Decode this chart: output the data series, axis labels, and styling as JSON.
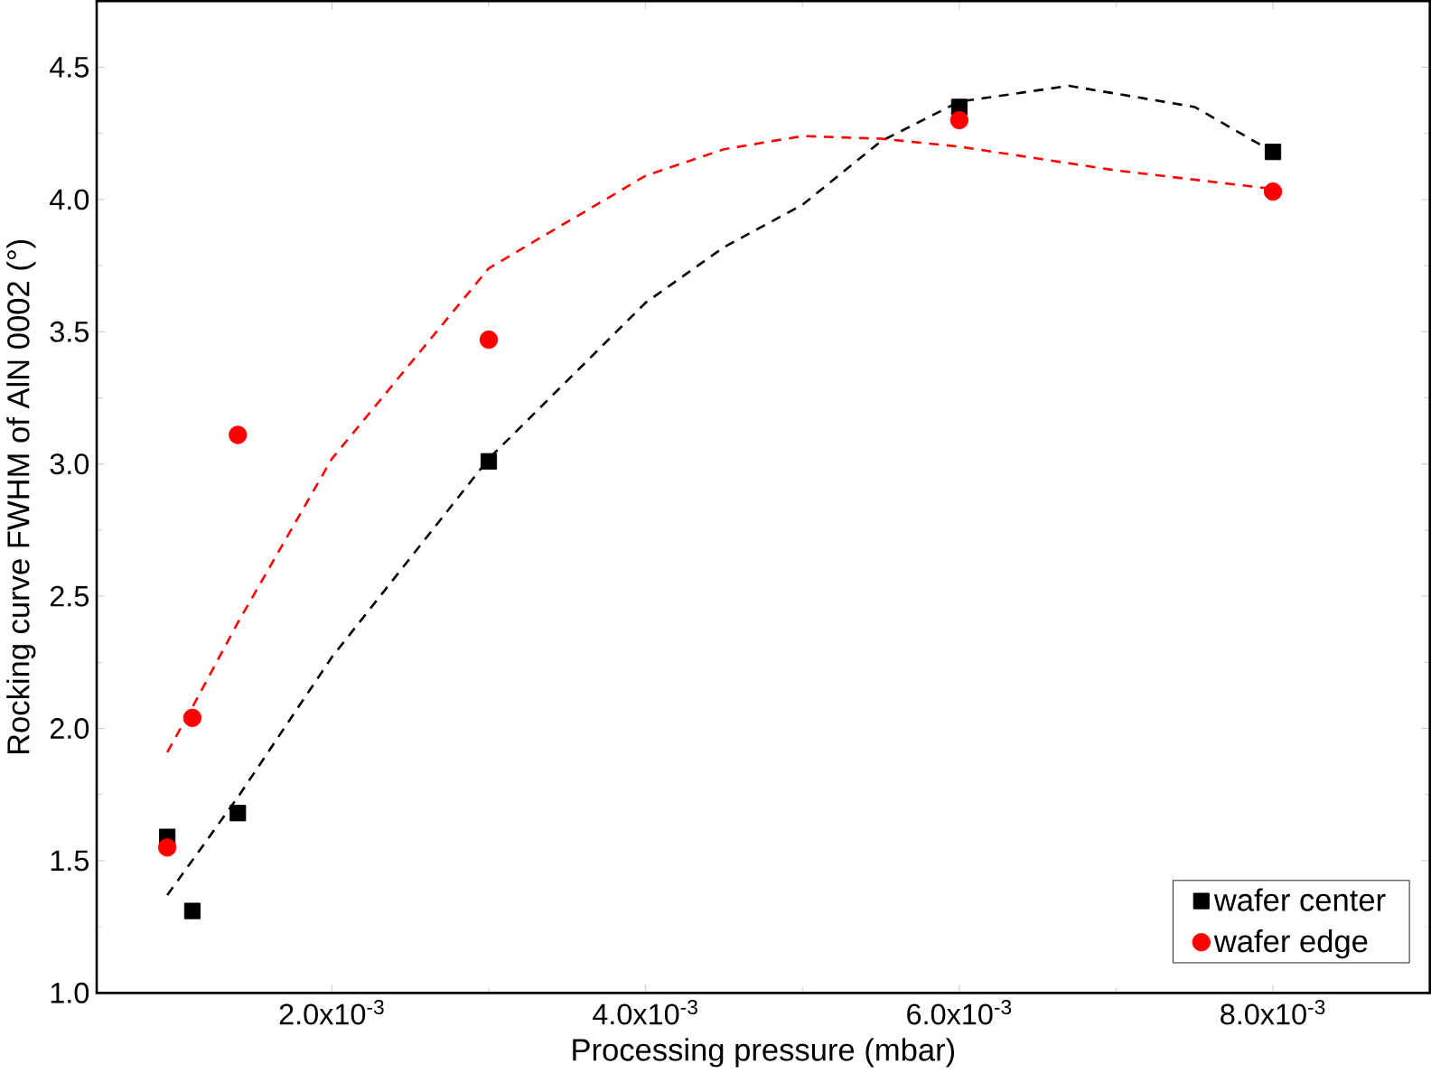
{
  "chart_data": {
    "type": "scatter",
    "xlabel": "Processing pressure (mbar)",
    "ylabel": "Rocking curve FWHM of AlN 0002 (°)",
    "xlim": [
      0.0005,
      0.009
    ],
    "ylim": [
      1.0,
      4.75
    ],
    "xticks": [
      {
        "value": 0.002,
        "label": "2.0x10$^{-3}$"
      },
      {
        "value": 0.004,
        "label": "4.0x10$^{-3}$"
      },
      {
        "value": 0.006,
        "label": "6.0x10$^{-3}$"
      },
      {
        "value": 0.008,
        "label": "8.0x10$^{-3}$"
      }
    ],
    "yticks": [
      {
        "value": 1.0,
        "label": "1.0"
      },
      {
        "value": 1.5,
        "label": "1.5"
      },
      {
        "value": 2.0,
        "label": "2.0"
      },
      {
        "value": 2.5,
        "label": "2.5"
      },
      {
        "value": 3.0,
        "label": "3.0"
      },
      {
        "value": 3.5,
        "label": "3.5"
      },
      {
        "value": 4.0,
        "label": "4.0"
      },
      {
        "value": 4.5,
        "label": "4.5"
      }
    ],
    "grid": false,
    "legend": "bottom right",
    "series": [
      {
        "type": "line",
        "line_style": "dashed",
        "marker": "none",
        "color": "#000000",
        "x": [
          0.00095,
          0.0014,
          0.002,
          0.003,
          0.004,
          0.0045,
          0.005,
          0.0055,
          0.006,
          0.0067,
          0.0075,
          0.008
        ],
        "values": [
          1.37,
          1.74,
          2.27,
          3.02,
          3.61,
          3.82,
          3.98,
          4.22,
          4.37,
          4.43,
          4.35,
          4.18
        ]
      },
      {
        "type": "line",
        "line_style": "dashed",
        "marker": "none",
        "color": "#ff0000",
        "x": [
          0.00095,
          0.00111,
          0.0014,
          0.002,
          0.003,
          0.004,
          0.0045,
          0.005,
          0.0055,
          0.006,
          0.007,
          0.008
        ],
        "values": [
          1.91,
          2.08,
          2.4,
          3.02,
          3.74,
          4.09,
          4.19,
          4.24,
          4.23,
          4.2,
          4.11,
          4.04
        ]
      },
      {
        "name": "wafer center",
        "marker": "square",
        "color": "#000000",
        "x": [
          0.00095,
          0.00111,
          0.0014,
          0.003,
          0.006,
          0.008
        ],
        "values": [
          1.59,
          1.31,
          1.68,
          3.01,
          4.35,
          4.18
        ]
      },
      {
        "name": "wafer edge",
        "marker": "circle",
        "color": "#ff0000",
        "x": [
          0.00095,
          0.00111,
          0.0014,
          0.003,
          0.006,
          0.008
        ],
        "values": [
          1.55,
          2.04,
          3.11,
          3.47,
          4.3,
          4.03
        ]
      }
    ]
  }
}
